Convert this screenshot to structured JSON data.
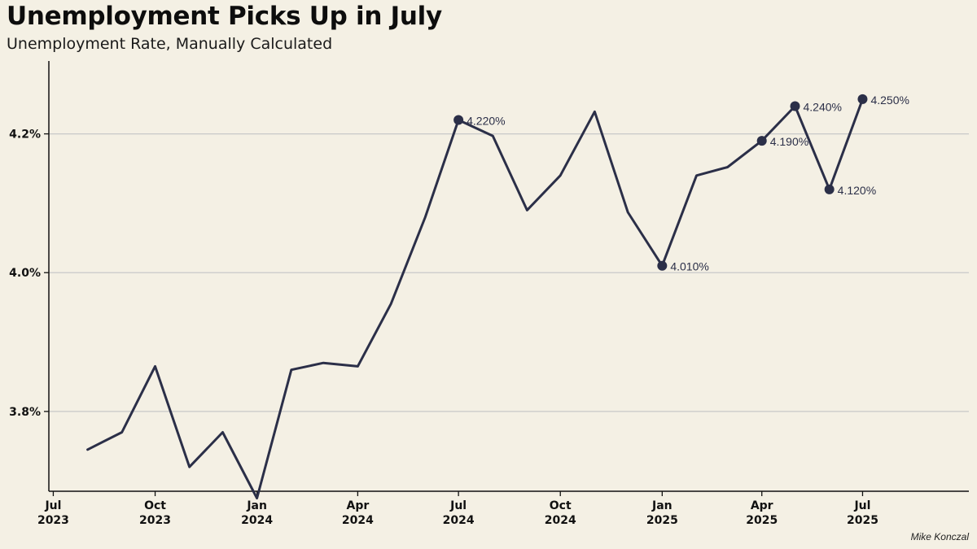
{
  "title": "Unemployment Picks Up in July",
  "subtitle": "Unemployment Rate, Manually Calculated",
  "credit": "Mike Konczal",
  "colors": {
    "background": "#f4f0e4",
    "line": "#2b2f48",
    "grid": "#c8c8c8",
    "text": "#111111"
  },
  "chart_data": {
    "type": "line",
    "title": "Unemployment Picks Up in July",
    "subtitle": "Unemployment Rate, Manually Calculated",
    "xlabel": "",
    "ylabel": "",
    "ylim": [
      3.685,
      4.305
    ],
    "xlim": [
      "2023-06-27",
      "2025-10-05"
    ],
    "grid": "horizontal",
    "legend": "none",
    "y_ticks": [
      {
        "value": 3.8,
        "label": "3.8%"
      },
      {
        "value": 4.0,
        "label": "4.0%"
      },
      {
        "value": 4.2,
        "label": "4.2%"
      }
    ],
    "x_ticks": [
      {
        "date": "2023-07-01",
        "month": "Jul",
        "year": "2023"
      },
      {
        "date": "2023-10-01",
        "month": "Oct",
        "year": "2023"
      },
      {
        "date": "2024-01-01",
        "month": "Jan",
        "year": "2024"
      },
      {
        "date": "2024-04-01",
        "month": "Apr",
        "year": "2024"
      },
      {
        "date": "2024-07-01",
        "month": "Jul",
        "year": "2024"
      },
      {
        "date": "2024-10-01",
        "month": "Oct",
        "year": "2024"
      },
      {
        "date": "2025-01-01",
        "month": "Jan",
        "year": "2025"
      },
      {
        "date": "2025-04-01",
        "month": "Apr",
        "year": "2025"
      },
      {
        "date": "2025-07-01",
        "month": "Jul",
        "year": "2025"
      }
    ],
    "series": [
      {
        "x": [
          "2023-08-01",
          "2023-09-01",
          "2023-10-01",
          "2023-11-01",
          "2023-12-01",
          "2024-01-01",
          "2024-02-01",
          "2024-03-01",
          "2024-04-01",
          "2024-05-01",
          "2024-06-01",
          "2024-07-01",
          "2024-08-01",
          "2024-09-01",
          "2024-10-01",
          "2024-11-01",
          "2024-12-01",
          "2025-01-01",
          "2025-02-01",
          "2025-03-01",
          "2025-04-01",
          "2025-05-01",
          "2025-06-01",
          "2025-07-01"
        ],
        "values": [
          3.745,
          3.77,
          3.865,
          3.72,
          3.77,
          3.675,
          3.86,
          3.87,
          3.865,
          3.955,
          4.08,
          4.22,
          4.197,
          4.09,
          4.14,
          4.232,
          4.087,
          4.01,
          4.14,
          4.152,
          4.19,
          4.24,
          4.12,
          4.25
        ]
      }
    ],
    "annotations": [
      {
        "x": "2024-07-01",
        "value": 4.22,
        "label": "4.220%"
      },
      {
        "x": "2025-01-01",
        "value": 4.01,
        "label": "4.010%"
      },
      {
        "x": "2025-04-01",
        "value": 4.19,
        "label": "4.190%"
      },
      {
        "x": "2025-05-01",
        "value": 4.24,
        "label": "4.240%"
      },
      {
        "x": "2025-06-01",
        "value": 4.12,
        "label": "4.120%"
      },
      {
        "x": "2025-07-01",
        "value": 4.25,
        "label": "4.250%"
      }
    ]
  }
}
